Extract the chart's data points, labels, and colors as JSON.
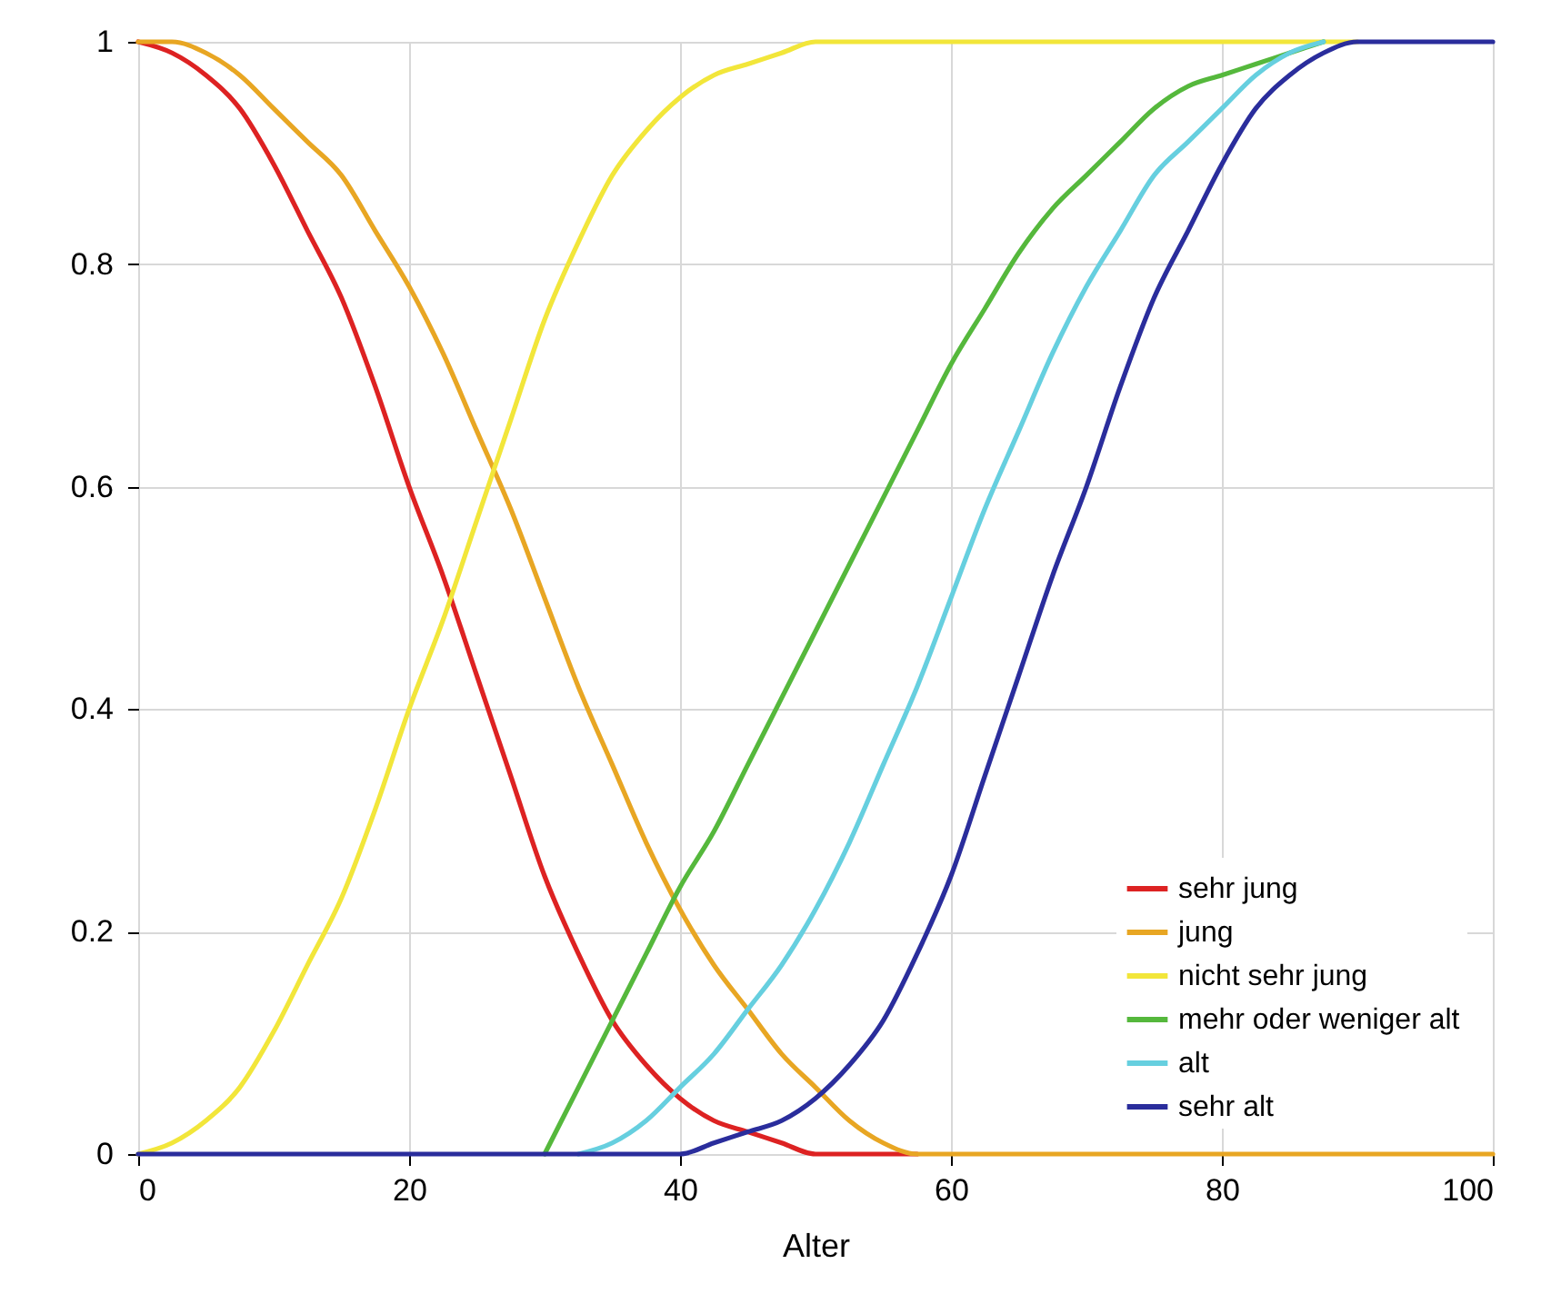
{
  "chart_data": {
    "type": "line",
    "xlabel": "Alter",
    "x": [
      0,
      2.5,
      5,
      7.5,
      10,
      12.5,
      15,
      17.5,
      20,
      22.5,
      25,
      27.5,
      30,
      32.5,
      35,
      37.5,
      40,
      42.5,
      45,
      47.5,
      50,
      52.5,
      55,
      57.5,
      60,
      62.5,
      65,
      67.5,
      70,
      72.5,
      75,
      77.5,
      80,
      82.5,
      85,
      87.5,
      90,
      92.5,
      95,
      97.5,
      100
    ],
    "series": [
      {
        "name": "sehr jung",
        "color": "#dd2222",
        "values": [
          1,
          0.99,
          0.97,
          0.94,
          0.89,
          0.83,
          0.77,
          0.69,
          0.6,
          0.52,
          0.43,
          0.34,
          0.25,
          0.18,
          0.12,
          0.08,
          0.05,
          0.03,
          0.02,
          0.01,
          0,
          0,
          0,
          0,
          null,
          null,
          null,
          null,
          null,
          null,
          null,
          null,
          null,
          null,
          null,
          null,
          null,
          null,
          null,
          null,
          null
        ]
      },
      {
        "name": "jung",
        "color": "#e8a623",
        "values": [
          1,
          1.0,
          0.99,
          0.97,
          0.94,
          0.91,
          0.88,
          0.83,
          0.78,
          0.72,
          0.65,
          0.58,
          0.5,
          0.42,
          0.35,
          0.28,
          0.22,
          0.17,
          0.13,
          0.09,
          0.06,
          0.03,
          0.01,
          0.0,
          0,
          0,
          0,
          0,
          0,
          0,
          0,
          0,
          0,
          0,
          0,
          0,
          0,
          0,
          0,
          0,
          0
        ]
      },
      {
        "name": "nicht sehr jung",
        "color": "#f2e63a",
        "values": [
          0,
          0.01,
          0.03,
          0.06,
          0.11,
          0.17,
          0.23,
          0.31,
          0.4,
          0.48,
          0.57,
          0.66,
          0.75,
          0.82,
          0.88,
          0.92,
          0.95,
          0.97,
          0.98,
          0.99,
          1,
          1,
          1,
          1,
          1,
          1,
          1,
          1,
          1,
          1,
          1,
          1,
          1,
          1,
          1,
          1,
          1,
          null,
          null,
          null,
          null
        ]
      },
      {
        "name": "mehr oder weniger alt",
        "color": "#55b83c",
        "values": [
          null,
          null,
          null,
          null,
          null,
          null,
          null,
          null,
          null,
          null,
          null,
          null,
          0,
          0.06,
          0.12,
          0.18,
          0.24,
          0.29,
          0.35,
          0.41,
          0.47,
          0.53,
          0.59,
          0.65,
          0.71,
          0.76,
          0.81,
          0.85,
          0.88,
          0.91,
          0.94,
          0.96,
          0.97,
          0.98,
          0.99,
          1.0,
          null,
          null,
          null,
          null,
          null
        ]
      },
      {
        "name": "alt",
        "color": "#66cfdf",
        "values": [
          null,
          null,
          null,
          null,
          null,
          null,
          null,
          null,
          null,
          null,
          null,
          null,
          null,
          0.0,
          0.01,
          0.03,
          0.06,
          0.09,
          0.13,
          0.17,
          0.22,
          0.28,
          0.35,
          0.42,
          0.5,
          0.58,
          0.65,
          0.72,
          0.78,
          0.83,
          0.88,
          0.91,
          0.94,
          0.97,
          0.99,
          1.0,
          null,
          null,
          null,
          null,
          null
        ]
      },
      {
        "name": "sehr alt",
        "color": "#2a2d9c",
        "values": [
          0,
          0,
          0,
          0,
          0,
          0,
          0,
          0,
          0,
          0,
          0,
          0,
          0,
          0,
          0,
          0,
          0,
          0.01,
          0.02,
          0.03,
          0.05,
          0.08,
          0.12,
          0.18,
          0.25,
          0.34,
          0.43,
          0.52,
          0.6,
          0.69,
          0.77,
          0.83,
          0.89,
          0.94,
          0.97,
          0.99,
          1,
          1,
          1,
          1,
          1
        ]
      }
    ],
    "xlim": [
      0,
      100
    ],
    "xticks": [
      0,
      20,
      40,
      60,
      80,
      100
    ],
    "ylim": [
      0,
      1
    ],
    "yticks": [
      {
        "value": 0,
        "label": "0"
      },
      0.2,
      0.4,
      0.6,
      0.8,
      {
        "value": 1,
        "label": "1"
      }
    ],
    "grid": true,
    "legend": "bottom right",
    "marker": "none",
    "line_style": "solid"
  }
}
